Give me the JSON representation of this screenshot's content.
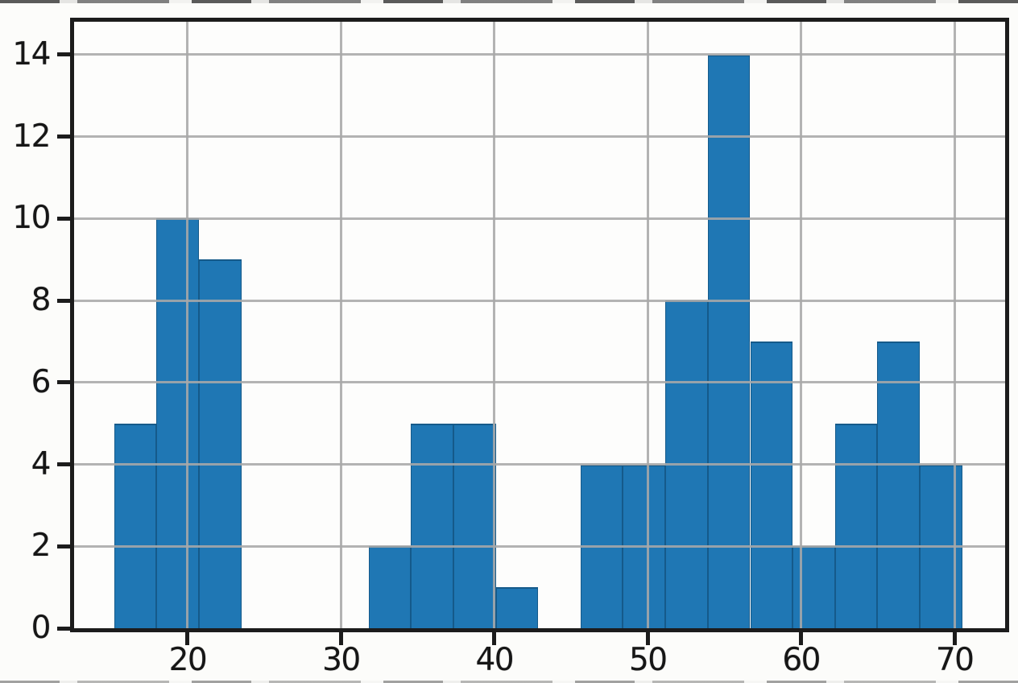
{
  "figure": {
    "background": "#fcfcfa"
  },
  "chart_data": {
    "type": "bar",
    "subtype": "histogram",
    "title": "",
    "xlabel": "",
    "ylabel": "",
    "legend": null,
    "grid": true,
    "grid_above_bars": true,
    "bin_edges": [
      15.2,
      17.97,
      20.73,
      23.5,
      26.26,
      29.03,
      31.79,
      34.56,
      37.32,
      40.09,
      42.85,
      45.62,
      48.38,
      51.15,
      53.91,
      56.68,
      59.44,
      62.21,
      64.97,
      67.74,
      70.5
    ],
    "counts": [
      5,
      10,
      9,
      0,
      0,
      0,
      2,
      5,
      5,
      1,
      0,
      4,
      4,
      8,
      14,
      7,
      2,
      5,
      7,
      4
    ],
    "x_tick_values": [
      20,
      30,
      40,
      50,
      60,
      70
    ],
    "x_tick_labels": [
      "20",
      "30",
      "40",
      "50",
      "60",
      "70"
    ],
    "y_tick_values": [
      0,
      2,
      4,
      6,
      8,
      10,
      12,
      14
    ],
    "y_tick_labels": [
      "0",
      "2",
      "4",
      "6",
      "8",
      "10",
      "12",
      "14"
    ],
    "xlim": [
      12.6,
      73.3
    ],
    "ylim": [
      0,
      14.8
    ],
    "colors": {
      "bar_fill": "#1f77b4",
      "bar_edge": "#155a8a",
      "grid_line": "#a9a9a9",
      "axis_line": "#1c1c1c",
      "tick_label": "#161616",
      "plot_background": "#fdfdfc"
    }
  }
}
